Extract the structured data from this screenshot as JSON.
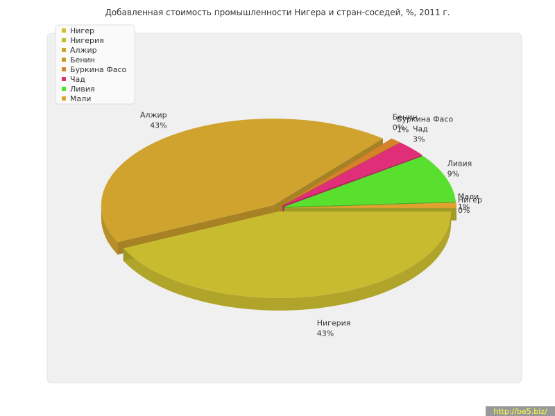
{
  "chart_data": {
    "type": "pie3d",
    "title": "Добавленная стоимость промышленности Нигера и стран-соседей, %, 2011 г.",
    "categories": [
      "Нигер",
      "Нигерия",
      "Алжир",
      "Бенин",
      "Буркина Фасо",
      "Чад",
      "Ливия",
      "Мали"
    ],
    "values": [
      0,
      43,
      43,
      0,
      1,
      3,
      9,
      1
    ],
    "value_labels": [
      "0%",
      "43%",
      "43%",
      "0%",
      "1%",
      "3%",
      "9%",
      "1%"
    ],
    "colors": [
      "#c9c232",
      "#c8bb30",
      "#cfa32d",
      "#c9992b",
      "#d5822a",
      "#e02f78",
      "#59e02e",
      "#e0a22e"
    ],
    "legend": "top-left",
    "watermark": "http://be5.biz/"
  }
}
